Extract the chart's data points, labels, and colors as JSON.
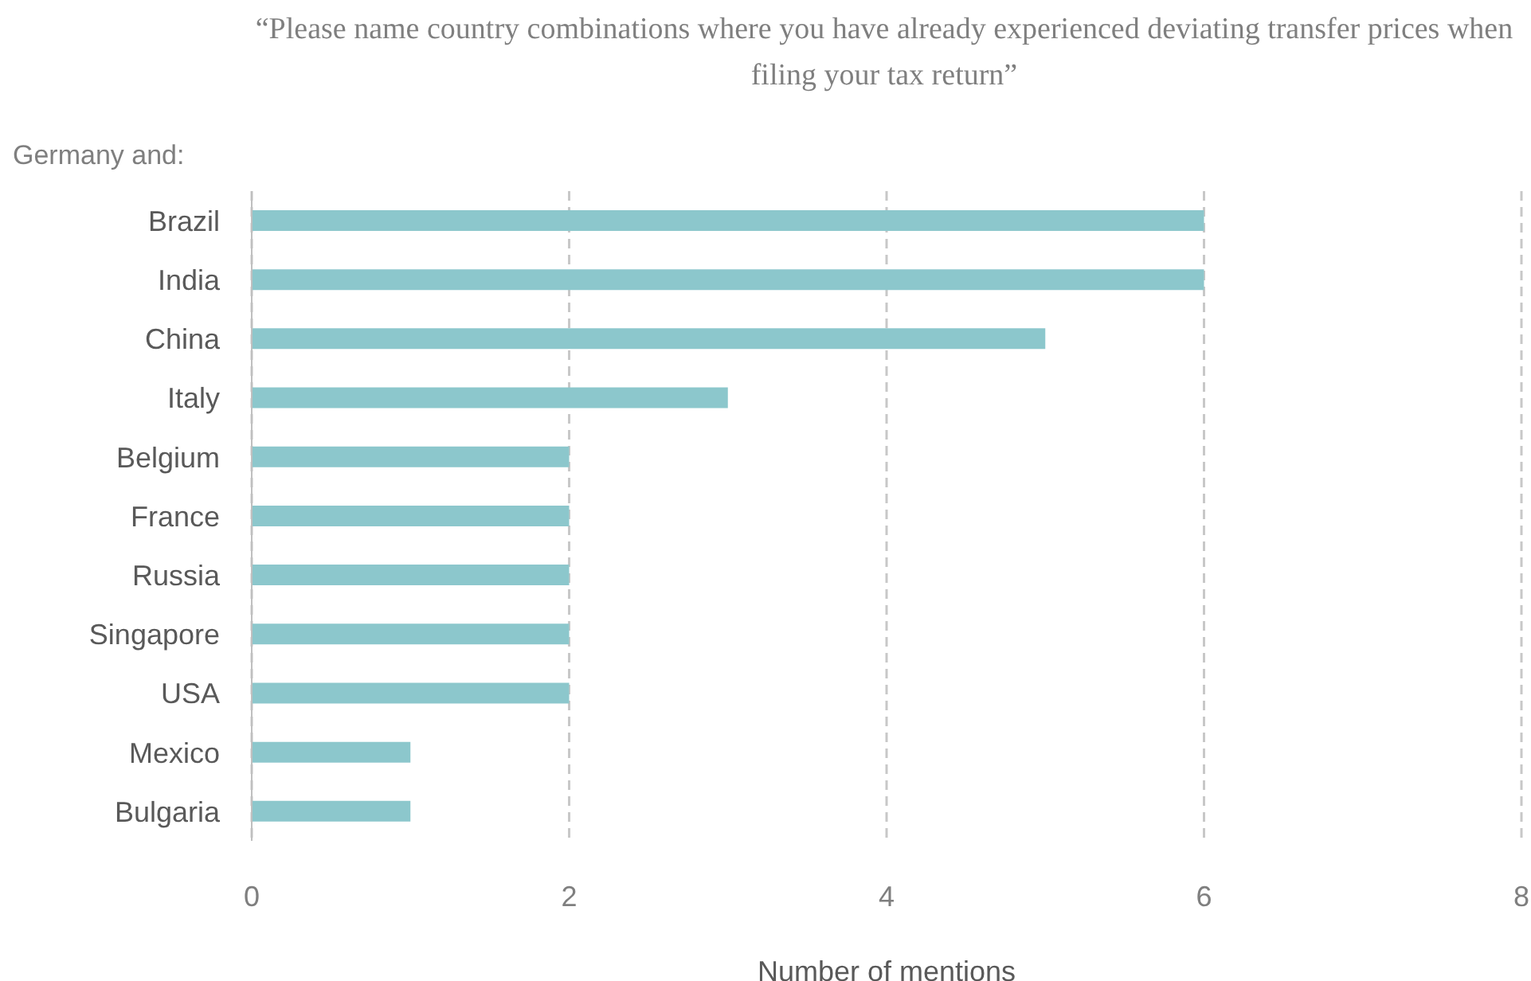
{
  "chart_data": {
    "type": "bar",
    "orientation": "horizontal",
    "title": "“Please name country combinations where you have already experienced deviating transfer prices when filing your tax return”",
    "ylabel": "Germany and:",
    "xlabel": "Number of mentions",
    "categories": [
      "Brazil",
      "India",
      "China",
      "Italy",
      "Belgium",
      "France",
      "Russia",
      "Singapore",
      "USA",
      "Mexico",
      "Bulgaria"
    ],
    "values": [
      6,
      6,
      5,
      3,
      2,
      2,
      2,
      2,
      2,
      1,
      1
    ],
    "color": "#8cc7cc",
    "xlim": [
      0,
      8
    ],
    "xticks": [
      0,
      2,
      4,
      6,
      8
    ],
    "grid": "x",
    "legend": false
  }
}
